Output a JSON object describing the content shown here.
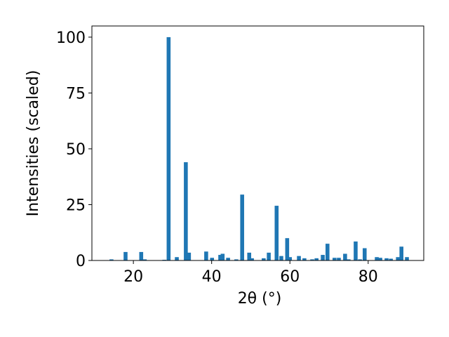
{
  "chart_data": {
    "type": "bar",
    "x": [
      14.4,
      18.0,
      22.0,
      22.9,
      27.9,
      29.0,
      31.1,
      33.4,
      34.2,
      38.6,
      40.1,
      42.2,
      42.8,
      44.2,
      46.3,
      47.8,
      49.6,
      50.3,
      53.3,
      54.6,
      56.6,
      57.8,
      59.3,
      60.0,
      62.3,
      63.7,
      65.7,
      66.8,
      68.4,
      69.6,
      71.4,
      72.5,
      74.1,
      75.0,
      76.8,
      77.9,
      79.1,
      82.2,
      83.1,
      84.7,
      85.8,
      87.6,
      88.5,
      89.9
    ],
    "values": [
      0.5,
      3.8,
      3.8,
      0.5,
      0.3,
      100,
      1.5,
      44,
      3.5,
      4,
      1.2,
      2.5,
      3,
      1.2,
      0.5,
      29.5,
      3.5,
      1,
      1,
      3.5,
      24.5,
      2,
      10,
      1.5,
      2,
      1,
      0.5,
      1,
      2.5,
      7.5,
      1.2,
      1.2,
      3,
      0.5,
      8.5,
      0.5,
      5.5,
      1.5,
      1.2,
      1,
      0.8,
      1.5,
      6.2,
      1.5
    ],
    "color": "#1f77b4",
    "xlabel": "2θ (°)",
    "ylabel": "Intensities (scaled)",
    "xlim": [
      9.4,
      94.2
    ],
    "ylim": [
      0,
      105
    ],
    "xticks": [
      20,
      40,
      60,
      80
    ],
    "yticks": [
      0,
      25,
      50,
      75,
      100
    ]
  }
}
